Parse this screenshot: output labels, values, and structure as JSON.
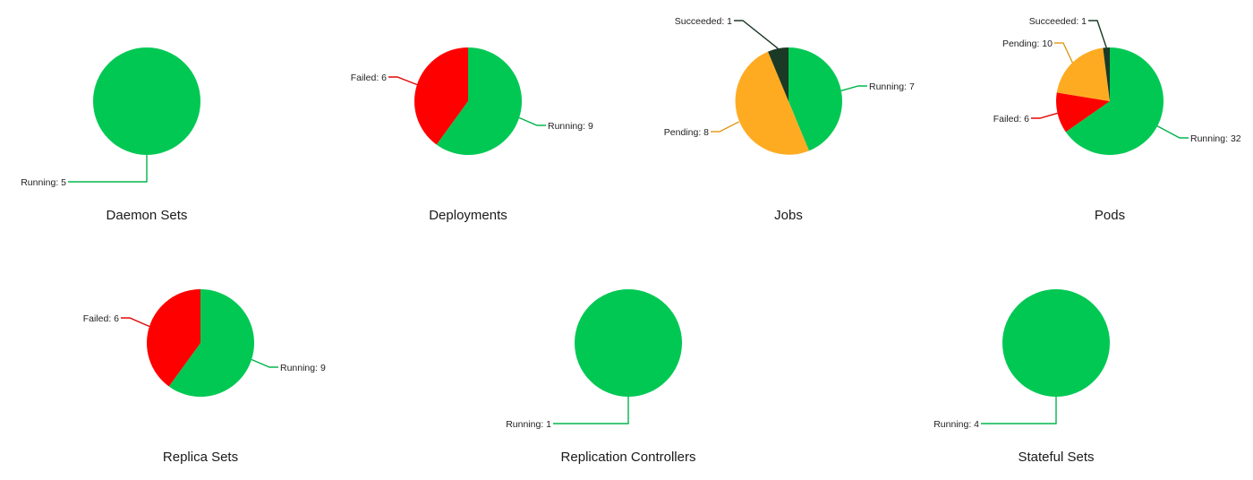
{
  "status_colors": {
    "Running": "#00c853",
    "Failed": "#ff0000",
    "Pending": "#ffab22",
    "Succeeded": "#1b3a26"
  },
  "chart_data": [
    {
      "type": "pie",
      "title": "Daemon Sets",
      "slices": [
        {
          "label": "Running",
          "value": 5,
          "text": "Running: 5"
        }
      ]
    },
    {
      "type": "pie",
      "title": "Deployments",
      "slices": [
        {
          "label": "Running",
          "value": 9,
          "text": "Running: 9"
        },
        {
          "label": "Failed",
          "value": 6,
          "text": "Failed: 6"
        }
      ]
    },
    {
      "type": "pie",
      "title": "Jobs",
      "slices": [
        {
          "label": "Running",
          "value": 7,
          "text": "Running: 7"
        },
        {
          "label": "Pending",
          "value": 8,
          "text": "Pending: 8"
        },
        {
          "label": "Succeeded",
          "value": 1,
          "text": "Succeeded: 1"
        }
      ]
    },
    {
      "type": "pie",
      "title": "Pods",
      "slices": [
        {
          "label": "Running",
          "value": 32,
          "text": "Running: 32"
        },
        {
          "label": "Failed",
          "value": 6,
          "text": "Failed: 6"
        },
        {
          "label": "Pending",
          "value": 10,
          "text": "Pending: 10"
        },
        {
          "label": "Succeeded",
          "value": 1,
          "text": "Succeeded: 1"
        }
      ]
    },
    {
      "type": "pie",
      "title": "Replica Sets",
      "slices": [
        {
          "label": "Running",
          "value": 9,
          "text": "Running: 9"
        },
        {
          "label": "Failed",
          "value": 6,
          "text": "Failed: 6"
        }
      ]
    },
    {
      "type": "pie",
      "title": "Replication Controllers",
      "slices": [
        {
          "label": "Running",
          "value": 1,
          "text": "Running: 1"
        }
      ]
    },
    {
      "type": "pie",
      "title": "Stateful Sets",
      "slices": [
        {
          "label": "Running",
          "value": 4,
          "text": "Running: 4"
        }
      ]
    }
  ]
}
